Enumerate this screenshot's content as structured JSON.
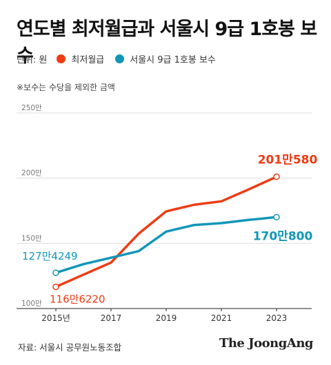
{
  "title": "연도별 최저월급과 서울시 9급 1호봉 보수",
  "legend": {
    "unit": "단위: 원",
    "items": [
      {
        "label": "최저월급",
        "color": "#ee3b14"
      },
      {
        "label": "서울시 9급 1호봉 보수",
        "color": "#1296b8"
      }
    ]
  },
  "note": "※보수는 수당을 제외한 금액",
  "source": "자료: 서울시 공무원노동조합",
  "brand": "The JoongAng",
  "chart_data": {
    "type": "line",
    "x": [
      2015,
      2016,
      2017,
      2018,
      2019,
      2020,
      2021,
      2022,
      2023
    ],
    "x_ticks": [
      2015,
      2017,
      2019,
      2021,
      2023
    ],
    "x_tick_labels": [
      "2015년",
      "2017",
      "2019",
      "2021",
      "2023"
    ],
    "y_ticks": [
      1000000,
      1500000,
      2000000,
      2500000
    ],
    "y_tick_labels": [
      "100만",
      "150만",
      "200만",
      "250만"
    ],
    "ylim": [
      1000000,
      2500000
    ],
    "grid": true,
    "series": [
      {
        "name": "최저월급",
        "color": "#ee3b14",
        "values": [
          1166220,
          1260000,
          1352230,
          1573770,
          1745150,
          1795310,
          1822480,
          1914440,
          2010580
        ],
        "start_label": "116만6220",
        "end_label": "201만580"
      },
      {
        "name": "서울시 9급 1호봉 보수",
        "color": "#1296b8",
        "values": [
          1274249,
          1340000,
          1390000,
          1440000,
          1590000,
          1640000,
          1655000,
          1680000,
          1700800
        ],
        "start_label": "127만4249",
        "end_label": "170만800"
      }
    ]
  }
}
